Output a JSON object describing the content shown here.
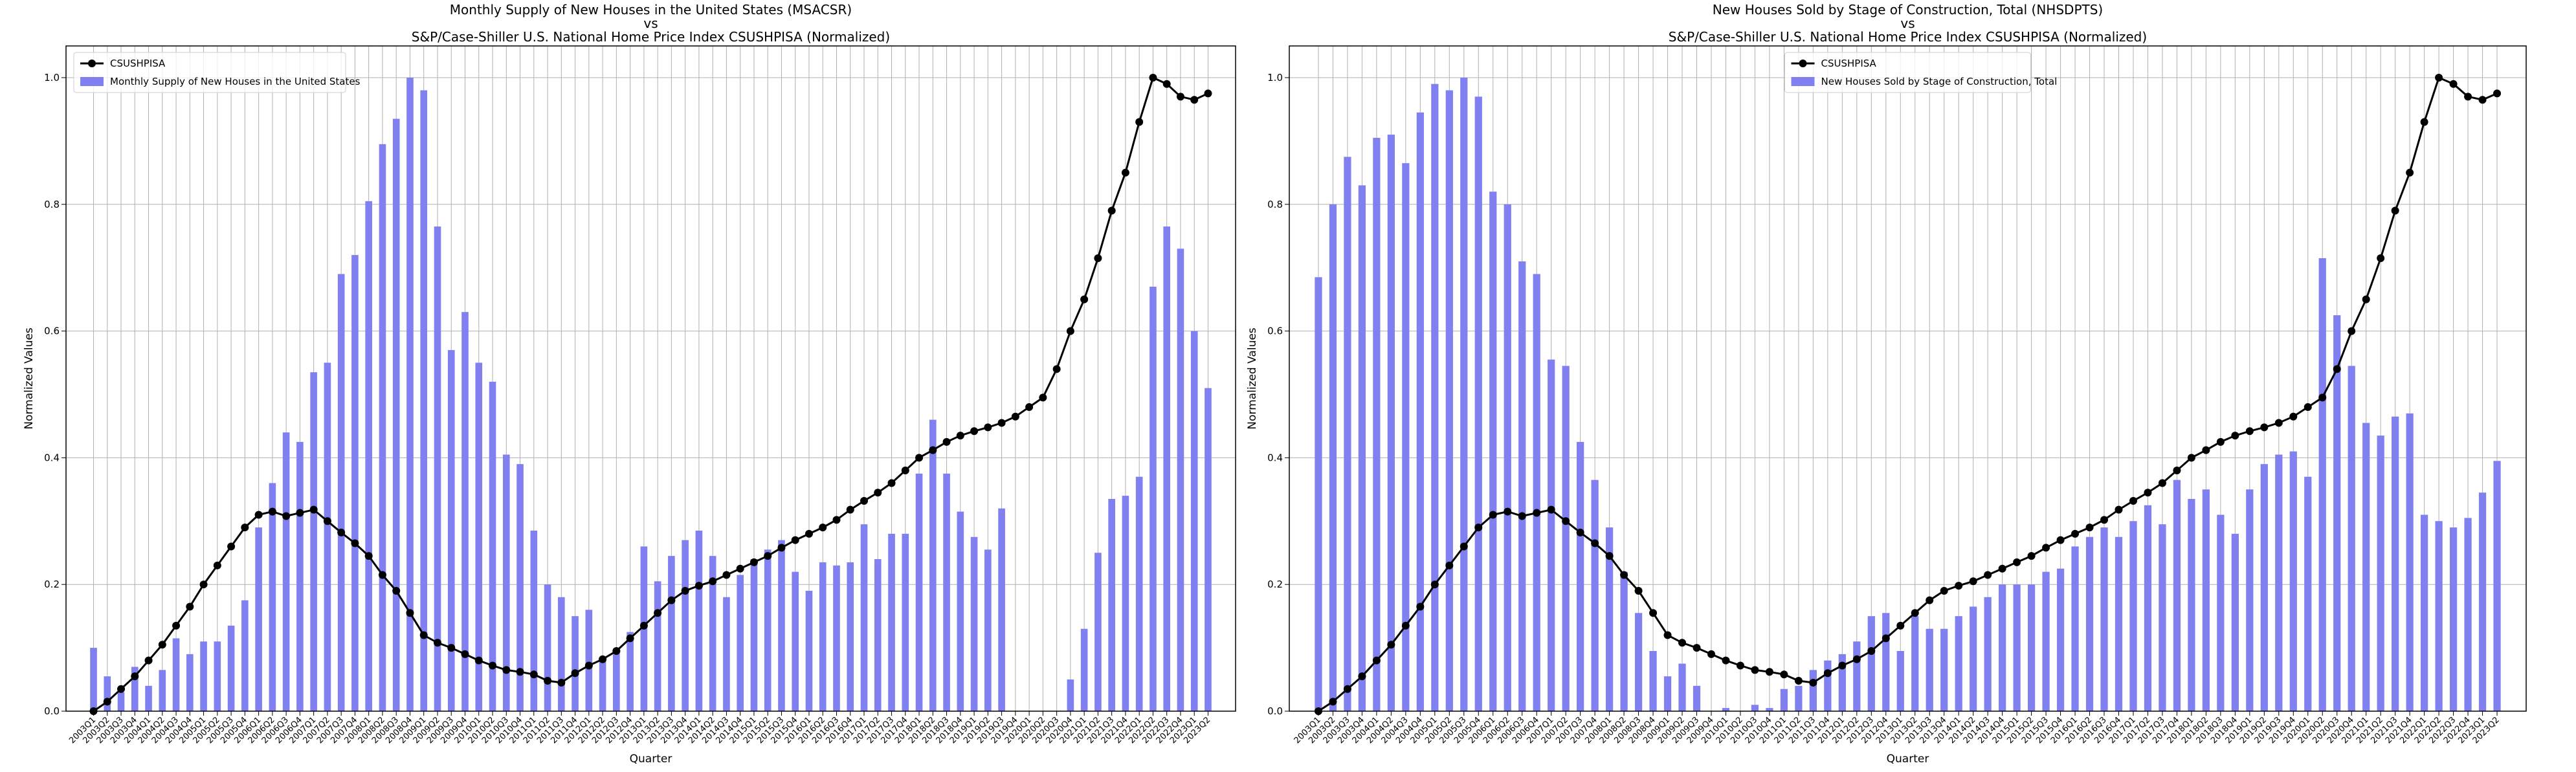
{
  "chart_data": [
    {
      "type": "combo",
      "title": [
        "Monthly Supply of New Houses in the United States (MSACSR)",
        "vs",
        "S&P/Case-Shiller U.S. National Home Price Index CSUSHPISA (Normalized)"
      ],
      "x_label": "Quarter",
      "y_label": "Normalized Values",
      "categories": [
        "2003Q1",
        "2003Q2",
        "2003Q3",
        "2003Q4",
        "2004Q1",
        "2004Q2",
        "2004Q3",
        "2004Q4",
        "2005Q1",
        "2005Q2",
        "2005Q3",
        "2005Q4",
        "2006Q1",
        "2006Q2",
        "2006Q3",
        "2006Q4",
        "2007Q1",
        "2007Q2",
        "2007Q3",
        "2007Q4",
        "2008Q1",
        "2008Q2",
        "2008Q3",
        "2008Q4",
        "2009Q1",
        "2009Q2",
        "2009Q3",
        "2009Q4",
        "2010Q1",
        "2010Q2",
        "2010Q3",
        "2010Q4",
        "2011Q1",
        "2011Q2",
        "2011Q3",
        "2011Q4",
        "2012Q1",
        "2012Q2",
        "2012Q3",
        "2012Q4",
        "2013Q1",
        "2013Q2",
        "2013Q3",
        "2013Q4",
        "2014Q1",
        "2014Q2",
        "2014Q3",
        "2014Q4",
        "2015Q1",
        "2015Q2",
        "2015Q3",
        "2015Q4",
        "2016Q1",
        "2016Q2",
        "2016Q3",
        "2016Q4",
        "2017Q1",
        "2017Q2",
        "2017Q3",
        "2017Q4",
        "2018Q1",
        "2018Q2",
        "2018Q3",
        "2018Q4",
        "2019Q1",
        "2019Q2",
        "2019Q3",
        "2019Q4",
        "2020Q1",
        "2020Q2",
        "2020Q3",
        "2020Q4",
        "2021Q1",
        "2021Q2",
        "2021Q3",
        "2021Q4",
        "2022Q1",
        "2022Q2",
        "2022Q3",
        "2022Q4",
        "2023Q1",
        "2023Q2"
      ],
      "series": [
        {
          "name": "CSUSHPISA",
          "kind": "line",
          "color": "#000000",
          "values": [
            0.0,
            0.015,
            0.035,
            0.055,
            0.08,
            0.105,
            0.135,
            0.165,
            0.2,
            0.23,
            0.26,
            0.29,
            0.31,
            0.315,
            0.308,
            0.313,
            0.318,
            0.3,
            0.282,
            0.265,
            0.245,
            0.215,
            0.19,
            0.155,
            0.12,
            0.108,
            0.1,
            0.09,
            0.08,
            0.072,
            0.065,
            0.062,
            0.058,
            0.048,
            0.045,
            0.06,
            0.072,
            0.082,
            0.095,
            0.115,
            0.135,
            0.155,
            0.175,
            0.19,
            0.198,
            0.205,
            0.215,
            0.225,
            0.235,
            0.245,
            0.258,
            0.27,
            0.28,
            0.29,
            0.302,
            0.318,
            0.332,
            0.345,
            0.36,
            0.38,
            0.4,
            0.412,
            0.425,
            0.435,
            0.442,
            0.448,
            0.455,
            0.465,
            0.48,
            0.495,
            0.54,
            0.6,
            0.65,
            0.715,
            0.79,
            0.85,
            0.93,
            1.0,
            0.99,
            0.97,
            0.965,
            0.975
          ]
        },
        {
          "name": "Monthly Supply of New Houses in the United States",
          "kind": "bar",
          "color": "#8080f0",
          "values": [
            0.1,
            0.055,
            0.03,
            0.07,
            0.04,
            0.065,
            0.115,
            0.09,
            0.11,
            0.11,
            0.135,
            0.175,
            0.29,
            0.36,
            0.44,
            0.425,
            0.535,
            0.55,
            0.69,
            0.72,
            0.805,
            0.895,
            0.935,
            1.0,
            0.98,
            0.765,
            0.57,
            0.63,
            0.55,
            0.52,
            0.405,
            0.39,
            0.285,
            0.2,
            0.18,
            0.15,
            0.16,
            0.085,
            0.095,
            0.125,
            0.26,
            0.205,
            0.245,
            0.27,
            0.285,
            0.245,
            0.18,
            0.215,
            0.24,
            0.255,
            0.27,
            0.22,
            0.19,
            0.235,
            0.23,
            0.235,
            0.295,
            0.24,
            0.28,
            0.28,
            0.375,
            0.46,
            0.375,
            0.315,
            0.275,
            0.255,
            0.32,
            0.0,
            0.0,
            0.0,
            0.0,
            0.05,
            0.13,
            0.25,
            0.335,
            0.34,
            0.37,
            0.67,
            0.765,
            0.73,
            0.6,
            0.51
          ]
        }
      ],
      "ylim": [
        0,
        1.05
      ],
      "yticks": [
        {
          "value": 0,
          "label": "0.0"
        },
        0.2,
        0.4,
        0.6,
        0.8,
        {
          "value": 1,
          "label": "1.0"
        }
      ],
      "grid": true,
      "legend": "upper left"
    },
    {
      "type": "combo",
      "title": [
        "New Houses Sold by Stage of Construction, Total (NHSDPTS)",
        "vs",
        "S&P/Case-Shiller U.S. National Home Price Index CSUSHPISA (Normalized)"
      ],
      "x_label": "Quarter",
      "y_label": "Normalized Values",
      "categories": [
        "2003Q1",
        "2003Q2",
        "2003Q3",
        "2003Q4",
        "2004Q1",
        "2004Q2",
        "2004Q3",
        "2004Q4",
        "2005Q1",
        "2005Q2",
        "2005Q3",
        "2005Q4",
        "2006Q1",
        "2006Q2",
        "2006Q3",
        "2006Q4",
        "2007Q1",
        "2007Q2",
        "2007Q3",
        "2007Q4",
        "2008Q1",
        "2008Q2",
        "2008Q3",
        "2008Q4",
        "2009Q1",
        "2009Q2",
        "2009Q3",
        "2009Q4",
        "2010Q1",
        "2010Q2",
        "2010Q3",
        "2010Q4",
        "2011Q1",
        "2011Q2",
        "2011Q3",
        "2011Q4",
        "2012Q1",
        "2012Q2",
        "2012Q3",
        "2012Q4",
        "2013Q1",
        "2013Q2",
        "2013Q3",
        "2013Q4",
        "2014Q1",
        "2014Q2",
        "2014Q3",
        "2014Q4",
        "2015Q1",
        "2015Q2",
        "2015Q3",
        "2015Q4",
        "2016Q1",
        "2016Q2",
        "2016Q3",
        "2016Q4",
        "2017Q1",
        "2017Q2",
        "2017Q3",
        "2017Q4",
        "2018Q1",
        "2018Q2",
        "2018Q3",
        "2018Q4",
        "2019Q1",
        "2019Q2",
        "2019Q3",
        "2019Q4",
        "2020Q1",
        "2020Q2",
        "2020Q3",
        "2020Q4",
        "2021Q1",
        "2021Q2",
        "2021Q3",
        "2021Q4",
        "2022Q1",
        "2022Q2",
        "2022Q3",
        "2022Q4",
        "2023Q1",
        "2023Q2"
      ],
      "series": [
        {
          "name": "CSUSHPISA",
          "kind": "line",
          "color": "#000000",
          "values": [
            0.0,
            0.015,
            0.035,
            0.055,
            0.08,
            0.105,
            0.135,
            0.165,
            0.2,
            0.23,
            0.26,
            0.29,
            0.31,
            0.315,
            0.308,
            0.313,
            0.318,
            0.3,
            0.282,
            0.265,
            0.245,
            0.215,
            0.19,
            0.155,
            0.12,
            0.108,
            0.1,
            0.09,
            0.08,
            0.072,
            0.065,
            0.062,
            0.058,
            0.048,
            0.045,
            0.06,
            0.072,
            0.082,
            0.095,
            0.115,
            0.135,
            0.155,
            0.175,
            0.19,
            0.198,
            0.205,
            0.215,
            0.225,
            0.235,
            0.245,
            0.258,
            0.27,
            0.28,
            0.29,
            0.302,
            0.318,
            0.332,
            0.345,
            0.36,
            0.38,
            0.4,
            0.412,
            0.425,
            0.435,
            0.442,
            0.448,
            0.455,
            0.465,
            0.48,
            0.495,
            0.54,
            0.6,
            0.65,
            0.715,
            0.79,
            0.85,
            0.93,
            1.0,
            0.99,
            0.97,
            0.965,
            0.975
          ]
        },
        {
          "name": "New Houses Sold by Stage of Construction, Total",
          "kind": "bar",
          "color": "#8080f0",
          "values": [
            0.685,
            0.8,
            0.875,
            0.83,
            0.905,
            0.91,
            0.865,
            0.945,
            0.99,
            0.98,
            1.0,
            0.97,
            0.82,
            0.8,
            0.71,
            0.69,
            0.555,
            0.545,
            0.425,
            0.365,
            0.29,
            0.22,
            0.155,
            0.095,
            0.055,
            0.075,
            0.04,
            0.0,
            0.005,
            0.0,
            0.01,
            0.005,
            0.035,
            0.04,
            0.065,
            0.08,
            0.09,
            0.11,
            0.15,
            0.155,
            0.095,
            0.15,
            0.13,
            0.13,
            0.15,
            0.165,
            0.18,
            0.2,
            0.2,
            0.2,
            0.22,
            0.225,
            0.26,
            0.275,
            0.29,
            0.275,
            0.3,
            0.325,
            0.295,
            0.365,
            0.335,
            0.35,
            0.31,
            0.28,
            0.35,
            0.39,
            0.405,
            0.41,
            0.37,
            0.715,
            0.625,
            0.545,
            0.455,
            0.435,
            0.465,
            0.47,
            0.31,
            0.3,
            0.29,
            0.305,
            0.345,
            0.395
          ]
        }
      ],
      "ylim": [
        0,
        1.05
      ],
      "yticks": [
        {
          "value": 0,
          "label": "0.0"
        },
        0.2,
        0.4,
        0.6,
        0.8,
        {
          "value": 1,
          "label": "1.0"
        }
      ],
      "grid": true,
      "legend": "upper center"
    }
  ]
}
